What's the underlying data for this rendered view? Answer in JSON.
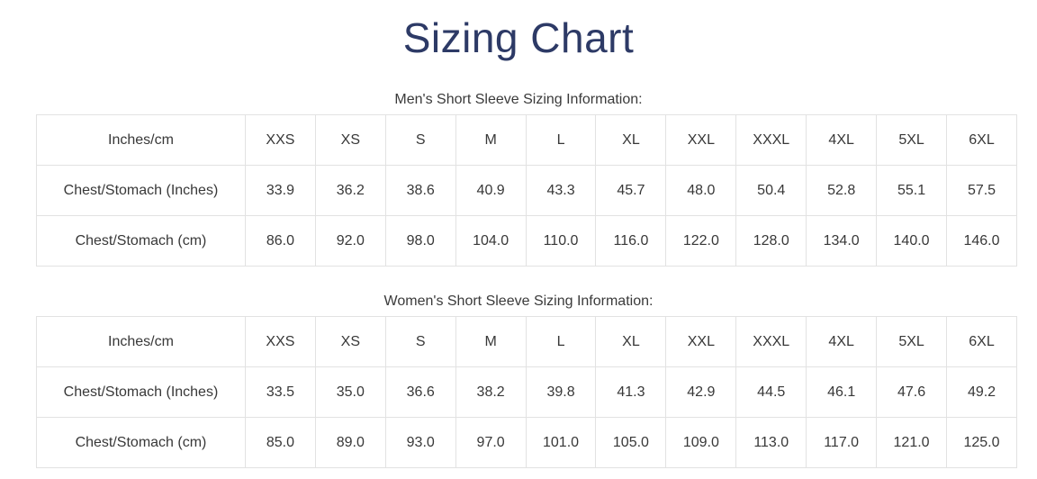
{
  "page": {
    "title": "Sizing Chart",
    "colors": {
      "title_color": "#2d3a66",
      "heading_color": "#3a3a3a",
      "cell_text": "#383838",
      "border_color": "#e2e2e2",
      "bg": "#ffffff"
    }
  },
  "tables": [
    {
      "heading": "Men's Short Sleeve Sizing Information:",
      "columns": [
        "Inches/cm",
        "XXS",
        "XS",
        "S",
        "M",
        "L",
        "XL",
        "XXL",
        "XXXL",
        "4XL",
        "5XL",
        "6XL"
      ],
      "rows": [
        {
          "label": "Chest/Stomach (Inches)",
          "values": [
            "33.9",
            "36.2",
            "38.6",
            "40.9",
            "43.3",
            "45.7",
            "48.0",
            "50.4",
            "52.8",
            "55.1",
            "57.5"
          ]
        },
        {
          "label": "Chest/Stomach (cm)",
          "values": [
            "86.0",
            "92.0",
            "98.0",
            "104.0",
            "110.0",
            "116.0",
            "122.0",
            "128.0",
            "134.0",
            "140.0",
            "146.0"
          ]
        }
      ]
    },
    {
      "heading": "Women's Short Sleeve Sizing Information:",
      "columns": [
        "Inches/cm",
        "XXS",
        "XS",
        "S",
        "M",
        "L",
        "XL",
        "XXL",
        "XXXL",
        "4XL",
        "5XL",
        "6XL"
      ],
      "rows": [
        {
          "label": "Chest/Stomach (Inches)",
          "values": [
            "33.5",
            "35.0",
            "36.6",
            "38.2",
            "39.8",
            "41.3",
            "42.9",
            "44.5",
            "46.1",
            "47.6",
            "49.2"
          ]
        },
        {
          "label": "Chest/Stomach (cm)",
          "values": [
            "85.0",
            "89.0",
            "93.0",
            "97.0",
            "101.0",
            "105.0",
            "109.0",
            "113.0",
            "117.0",
            "121.0",
            "125.0"
          ]
        }
      ]
    }
  ]
}
